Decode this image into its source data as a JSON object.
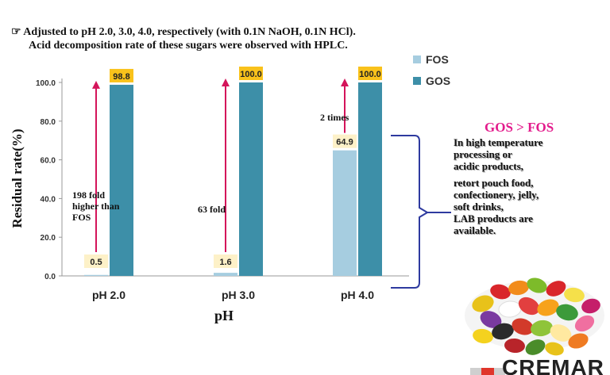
{
  "note": {
    "line1": "☞ Adjusted to pH 2.0, 3.0, 4.0, respectively (with 0.1N NaOH, 0.1N HCl).",
    "line2": "Acid decomposition rate of these sugars were observed with HPLC."
  },
  "colors": {
    "fos": "#a6cde0",
    "gos": "#3d8fa8",
    "arrow": "#d4145a",
    "label_box": "#fdf1c8",
    "gos_label_box": "#f9c21b",
    "bracket": "#2e3a9f",
    "side_title": "#e31b8c"
  },
  "chart_data": {
    "type": "bar",
    "categories": [
      "pH 2.0",
      "pH 3.0",
      "pH 4.0"
    ],
    "series": [
      {
        "name": "FOS",
        "values": [
          0.5,
          1.6,
          64.9
        ],
        "labels": [
          "0.5",
          "1.6",
          "64.9"
        ]
      },
      {
        "name": "GOS",
        "values": [
          98.8,
          100.0,
          100.0
        ],
        "labels": [
          "98.8",
          "100.0",
          "100.0"
        ]
      }
    ],
    "ylabel": "Residual  rate(%)",
    "xlabel": "pH",
    "ylim": [
      0,
      100
    ],
    "yticks": [
      "0.0",
      "20.0",
      "40.0",
      "60.0",
      "80.0",
      "100.0"
    ],
    "legend": "top-right",
    "grid": false,
    "annotations": [
      {
        "category": "pH 2.0",
        "text": "198 fold higher than FOS"
      },
      {
        "category": "pH 3.0",
        "text": "63 fold"
      },
      {
        "category": "pH 4.0",
        "text": "2 times"
      }
    ]
  },
  "side": {
    "title": "GOS > FOS",
    "lines": [
      "In high temperature",
      "processing or",
      "acidic products,",
      "retort pouch food,",
      "confectionery, jelly,",
      "soft drinks,",
      "LAB products are",
      "available."
    ]
  },
  "logo": {
    "text": "CREMAR"
  }
}
